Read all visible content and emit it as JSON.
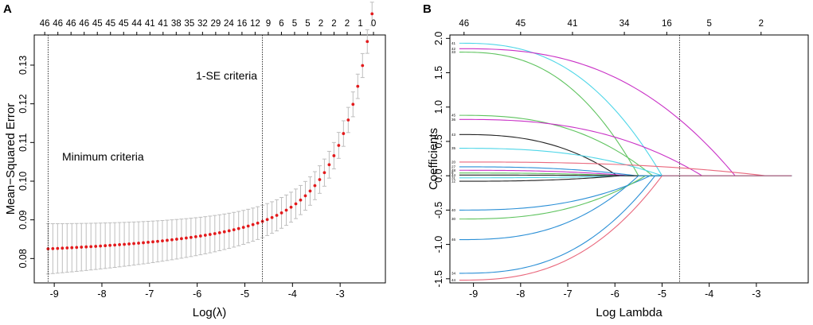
{
  "chart_data": [
    {
      "panel": "A",
      "type": "scatter",
      "title": "",
      "xlabel": "Log(λ)",
      "ylabel": "Mean−Squared Error",
      "xlim": [
        -9.42,
        -2.05
      ],
      "ylim": [
        0.0737,
        0.1378
      ],
      "xticks": [
        -9,
        -8,
        -7,
        -6,
        -5,
        -4,
        -3
      ],
      "yticks": [
        0.08,
        0.09,
        0.1,
        0.11,
        0.12,
        0.13
      ],
      "top_axis_labels": [
        "46",
        "46",
        "46",
        "46",
        "45",
        "45",
        "45",
        "44",
        "41",
        "41",
        "38",
        "35",
        "32",
        "29",
        "24",
        "16",
        "12",
        "9",
        "6",
        "5",
        "5",
        "2",
        "2",
        "2",
        "1",
        "0"
      ],
      "vlines": [
        -9.13,
        -4.63
      ],
      "annotations": [
        "Minimum criteria",
        "1-SE criteria"
      ],
      "point_color": "#e31a1c",
      "errorbar_color": "#bebebe",
      "series": [
        {
          "name": "Cross-validated MSE",
          "x_start": -9.13,
          "x_step": 0.1,
          "count": 69
        }
      ]
    },
    {
      "panel": "B",
      "type": "line",
      "title": "",
      "xlabel": "Log Lambda",
      "ylabel": "Coefficients",
      "xlim": [
        -9.5,
        -1.9
      ],
      "ylim": [
        -1.56,
        2.05
      ],
      "xticks": [
        -9,
        -8,
        -7,
        -6,
        -5,
        -4,
        -3
      ],
      "yticks": [
        -1.5,
        -1.0,
        -0.5,
        0.0,
        0.5,
        1.0,
        1.5,
        2.0
      ],
      "top_axis_labels": [
        "46",
        "45",
        "41",
        "34",
        "16",
        "5",
        "2"
      ],
      "top_axis_positions": [
        -9.2,
        -8.0,
        -6.9,
        -5.8,
        -4.9,
        -4.0,
        -2.9
      ],
      "vline": -4.63,
      "left_variable_labels": [
        "41",
        "42",
        "33",
        "45",
        "36",
        "43",
        "35",
        "20",
        "27",
        "48",
        "8",
        "44",
        "31",
        "12",
        "40",
        "30",
        "46",
        "34",
        "44"
      ],
      "series": [
        {
          "label": "41",
          "start": 1.93,
          "end": -5.0,
          "color": "#4ed6e8"
        },
        {
          "label": "42",
          "start": 1.85,
          "end": -3.45,
          "color": "#c930c6"
        },
        {
          "label": "33",
          "start": 1.8,
          "end": -5.5,
          "color": "#5ec35e"
        },
        {
          "label": "45",
          "start": 0.88,
          "end": -5.2,
          "color": "#5ec35e"
        },
        {
          "label": "36",
          "start": 0.82,
          "end": -4.15,
          "color": "#c930c6"
        },
        {
          "label": "43",
          "start": 0.6,
          "end": -5.95,
          "color": "#222222"
        },
        {
          "label": "35",
          "start": 0.4,
          "end": -5.0,
          "color": "#4ed6e8"
        },
        {
          "label": "20",
          "start": 0.2,
          "end": -2.8,
          "color": "#e9677c"
        },
        {
          "label": "27",
          "start": 0.13,
          "end": -5.55,
          "color": "#2a8fd6"
        },
        {
          "label": "48",
          "start": 0.08,
          "end": -5.7,
          "color": "#c930c6"
        },
        {
          "label": "8",
          "start": 0.04,
          "end": -5.85,
          "color": "#5ec35e"
        },
        {
          "label": "44",
          "start": 0.01,
          "end": -5.6,
          "color": "#222222"
        },
        {
          "label": "31",
          "start": -0.03,
          "end": -5.75,
          "color": "#4ed6e8"
        },
        {
          "label": "12",
          "start": -0.08,
          "end": -5.9,
          "color": "#222222"
        },
        {
          "label": "40",
          "start": -0.5,
          "end": -5.25,
          "color": "#2a8fd6"
        },
        {
          "label": "30",
          "start": -0.63,
          "end": -5.35,
          "color": "#5ec35e"
        },
        {
          "label": "46",
          "start": -0.93,
          "end": -5.5,
          "color": "#2a8fd6"
        },
        {
          "label": "34",
          "start": -1.42,
          "end": -5.15,
          "color": "#2a8fd6"
        },
        {
          "label": "44",
          "start": -1.52,
          "end": -5.0,
          "color": "#e9677c"
        }
      ]
    }
  ]
}
